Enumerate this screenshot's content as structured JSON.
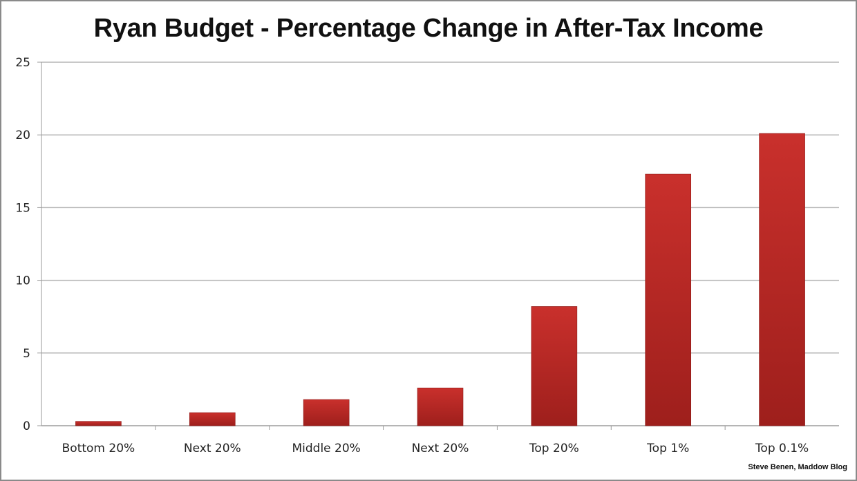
{
  "chart_data": {
    "type": "bar",
    "title": "Ryan Budget - Percentage Change in After-Tax Income",
    "categories": [
      "Bottom 20%",
      "Next 20%",
      "Middle 20%",
      "Next 20%",
      "Top 20%",
      "Top 1%",
      "Top 0.1%"
    ],
    "values": [
      0.3,
      0.9,
      1.8,
      2.6,
      8.2,
      17.3,
      20.1
    ],
    "ylim": [
      0,
      25
    ],
    "yticks": [
      "0",
      "5",
      "10",
      "15",
      "20",
      "25"
    ],
    "xlabel": "",
    "ylabel": "",
    "grid": true,
    "bar_color": "#c9302c",
    "bar_color_dark": "#9e1f1c"
  },
  "credit": "Steve Benen, Maddow Blog"
}
